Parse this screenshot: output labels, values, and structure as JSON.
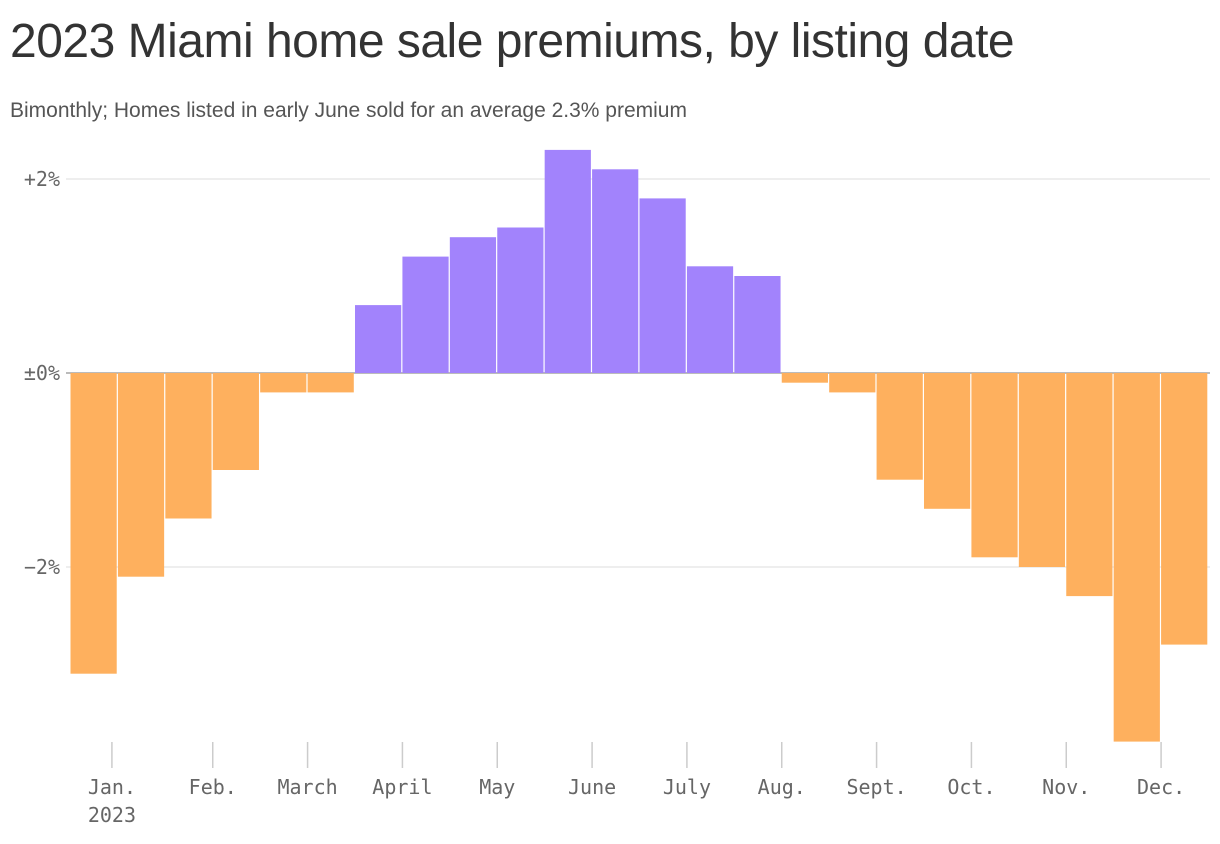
{
  "title": "2023 Miami home sale premiums, by listing date",
  "subtitle": "Bimonthly; Homes listed in early June sold for an average 2.3% premium",
  "colors": {
    "positive": "#a283fc",
    "negative": "#feb05e",
    "grid": "#dddddd",
    "zero_line": "#bbbbbb",
    "axis_text": "#666666",
    "title_text": "#333333"
  },
  "chart_data": {
    "type": "bar",
    "ylim": [
      -3.8,
      2.3
    ],
    "grid": true,
    "y_ticks": [
      {
        "value": 2,
        "label": "+2%"
      },
      {
        "value": 0,
        "label": "±0%"
      },
      {
        "value": -2,
        "label": "−2%"
      }
    ],
    "x_ticks": [
      {
        "label": "Jan.",
        "sublabel": "2023"
      },
      {
        "label": "Feb."
      },
      {
        "label": "March"
      },
      {
        "label": "April"
      },
      {
        "label": "May"
      },
      {
        "label": "June"
      },
      {
        "label": "July"
      },
      {
        "label": "Aug."
      },
      {
        "label": "Sept."
      },
      {
        "label": "Oct."
      },
      {
        "label": "Nov."
      },
      {
        "label": "Dec."
      }
    ],
    "bars": [
      {
        "month": "Jan.",
        "half": 1,
        "value": -3.1
      },
      {
        "month": "Jan.",
        "half": 2,
        "value": -2.1
      },
      {
        "month": "Feb.",
        "half": 1,
        "value": -1.5
      },
      {
        "month": "Feb.",
        "half": 2,
        "value": -1.0
      },
      {
        "month": "March",
        "half": 1,
        "value": -0.2
      },
      {
        "month": "March",
        "half": 2,
        "value": -0.2
      },
      {
        "month": "April",
        "half": 1,
        "value": 0.7
      },
      {
        "month": "April",
        "half": 2,
        "value": 1.2
      },
      {
        "month": "May",
        "half": 1,
        "value": 1.4
      },
      {
        "month": "May",
        "half": 2,
        "value": 1.5
      },
      {
        "month": "June",
        "half": 1,
        "value": 2.3
      },
      {
        "month": "June",
        "half": 2,
        "value": 2.1
      },
      {
        "month": "July",
        "half": 1,
        "value": 1.8
      },
      {
        "month": "July",
        "half": 2,
        "value": 1.1
      },
      {
        "month": "Aug.",
        "half": 1,
        "value": 1.0
      },
      {
        "month": "Aug.",
        "half": 2,
        "value": -0.1
      },
      {
        "month": "Sept.",
        "half": 1,
        "value": -0.2
      },
      {
        "month": "Sept.",
        "half": 2,
        "value": -1.1
      },
      {
        "month": "Oct.",
        "half": 1,
        "value": -1.4
      },
      {
        "month": "Oct.",
        "half": 2,
        "value": -1.9
      },
      {
        "month": "Nov.",
        "half": 1,
        "value": -2.0
      },
      {
        "month": "Nov.",
        "half": 2,
        "value": -2.3
      },
      {
        "month": "Dec.",
        "half": 1,
        "value": -3.8
      },
      {
        "month": "Dec.",
        "half": 2,
        "value": -2.8
      }
    ]
  }
}
